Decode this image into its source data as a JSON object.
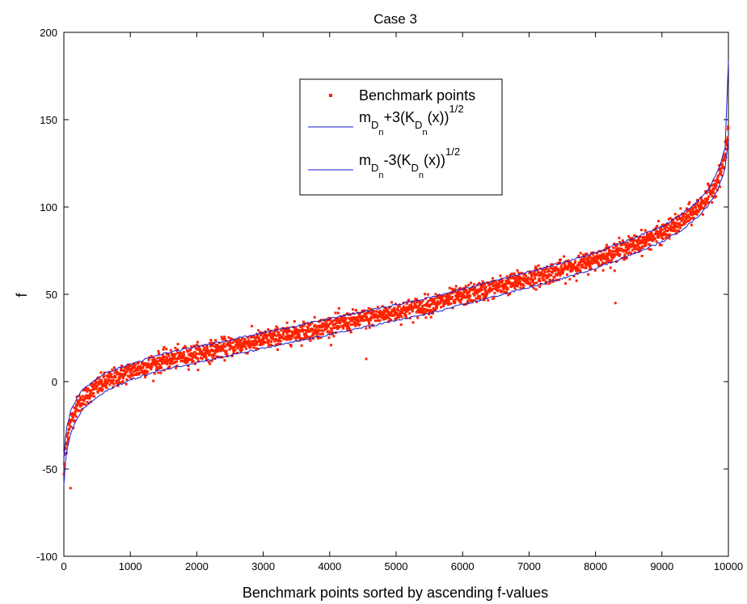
{
  "chart_data": {
    "type": "scatter",
    "title": "Case 3",
    "xlabel": "Benchmark points sorted by  ascending f-values",
    "ylabel": "f",
    "xlim": [
      0,
      10000
    ],
    "ylim": [
      -100,
      200
    ],
    "xticks": [
      0,
      1000,
      2000,
      3000,
      4000,
      5000,
      6000,
      7000,
      8000,
      9000,
      10000
    ],
    "yticks": [
      -100,
      -50,
      0,
      50,
      100,
      150,
      200
    ],
    "grid": false,
    "legend_position": "top-center",
    "colors": {
      "points": "#ff2200",
      "bands": "#1a1acc"
    },
    "series": [
      {
        "name": "Benchmark points",
        "kind": "scatter",
        "x": [
          0,
          20,
          50,
          100,
          200,
          300,
          500,
          700,
          1000,
          1500,
          2000,
          2500,
          3000,
          3500,
          4000,
          4500,
          5000,
          5500,
          6000,
          6500,
          7000,
          7500,
          8000,
          8500,
          9000,
          9300,
          9500,
          9700,
          9850,
          9950,
          10000
        ],
        "y": [
          -52,
          -40,
          -32,
          -23,
          -14,
          -9,
          -3,
          1,
          6,
          12,
          16,
          20,
          24,
          28,
          32,
          36,
          40,
          44,
          49,
          54,
          59,
          64,
          70,
          77,
          85,
          92,
          98,
          106,
          116,
          128,
          145
        ],
        "outliers": [
          [
            4550,
            13
          ],
          [
            8300,
            45
          ],
          [
            100,
            -61
          ]
        ]
      },
      {
        "name": "m_Dn+3(K_Dn(x))^1/2",
        "kind": "line",
        "x": [
          0,
          20,
          50,
          100,
          200,
          300,
          500,
          700,
          1000,
          1500,
          2000,
          2500,
          3000,
          3500,
          4000,
          4500,
          5000,
          5500,
          6000,
          6500,
          7000,
          7500,
          8000,
          8500,
          9000,
          9300,
          9500,
          9700,
          9850,
          9950,
          10000
        ],
        "y": [
          -45,
          -33,
          -25,
          -17,
          -9,
          -4,
          2,
          6,
          10,
          16,
          20,
          24,
          28,
          32,
          36,
          40,
          44,
          48,
          53,
          58,
          63,
          68,
          74,
          81,
          89,
          96,
          102,
          110,
          121,
          134,
          183
        ]
      },
      {
        "name": "m_Dn-3(K_Dn(x))^1/2",
        "kind": "line",
        "x": [
          0,
          20,
          50,
          100,
          200,
          300,
          500,
          700,
          1000,
          1500,
          2000,
          2500,
          3000,
          3500,
          4000,
          4500,
          5000,
          5500,
          6000,
          6500,
          7000,
          7500,
          8000,
          8500,
          9000,
          9300,
          9500,
          9700,
          9850,
          9950,
          10000
        ],
        "y": [
          -60,
          -47,
          -39,
          -30,
          -21,
          -15,
          -9,
          -4,
          1,
          7,
          11,
          15,
          19,
          23,
          27,
          31,
          35,
          39,
          44,
          49,
          54,
          59,
          65,
          72,
          80,
          87,
          93,
          101,
          111,
          122,
          138
        ]
      }
    ],
    "legend": {
      "entry1_label": "Benchmark points",
      "entry2_m": "m",
      "entry2_D": "D",
      "entry2_n": "n",
      "entry2_mid": "+3(K",
      "entry2_D2": "D",
      "entry2_n2": "n",
      "entry2_tail": "(x))",
      "entry2_exp": "1/2",
      "entry3_m": "m",
      "entry3_D": "D",
      "entry3_n": "n",
      "entry3_mid": "-3(K",
      "entry3_D2": "D",
      "entry3_n2": "n",
      "entry3_tail": "(x))",
      "entry3_exp": "1/2"
    }
  }
}
